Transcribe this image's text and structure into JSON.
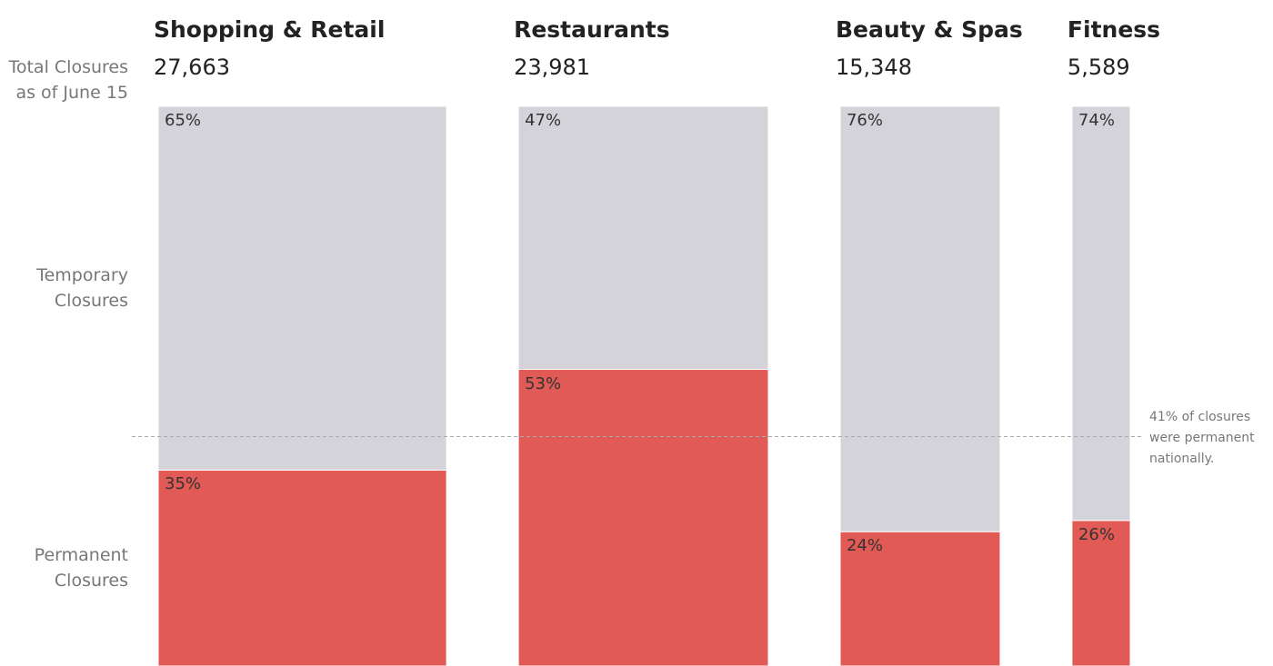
{
  "chart_data": {
    "type": "mekko",
    "categories": [
      "Shopping & Retail",
      "Restaurants",
      "Beauty & Spas",
      "Fitness"
    ],
    "totals": {
      "name": "Total Closures as of June 15",
      "values": [
        27663,
        23981,
        15348,
        5589
      ],
      "value_labels": [
        "27,663",
        "23,981",
        "15,348",
        "5,589"
      ]
    },
    "series": [
      {
        "name": "Permanent Closures",
        "color": "#e25a55",
        "values": [
          35,
          53,
          24,
          26
        ],
        "value_labels": [
          "35%",
          "53%",
          "24%",
          "26%"
        ]
      },
      {
        "name": "Temporary Closures",
        "color": "#d4d3da",
        "values": [
          65,
          47,
          76,
          74
        ],
        "value_labels": [
          "65%",
          "47%",
          "76%",
          "74%"
        ]
      }
    ],
    "ylim": [
      0,
      100
    ],
    "reference": {
      "value": 41,
      "label": "41% of closures were permanent nationally."
    }
  }
}
